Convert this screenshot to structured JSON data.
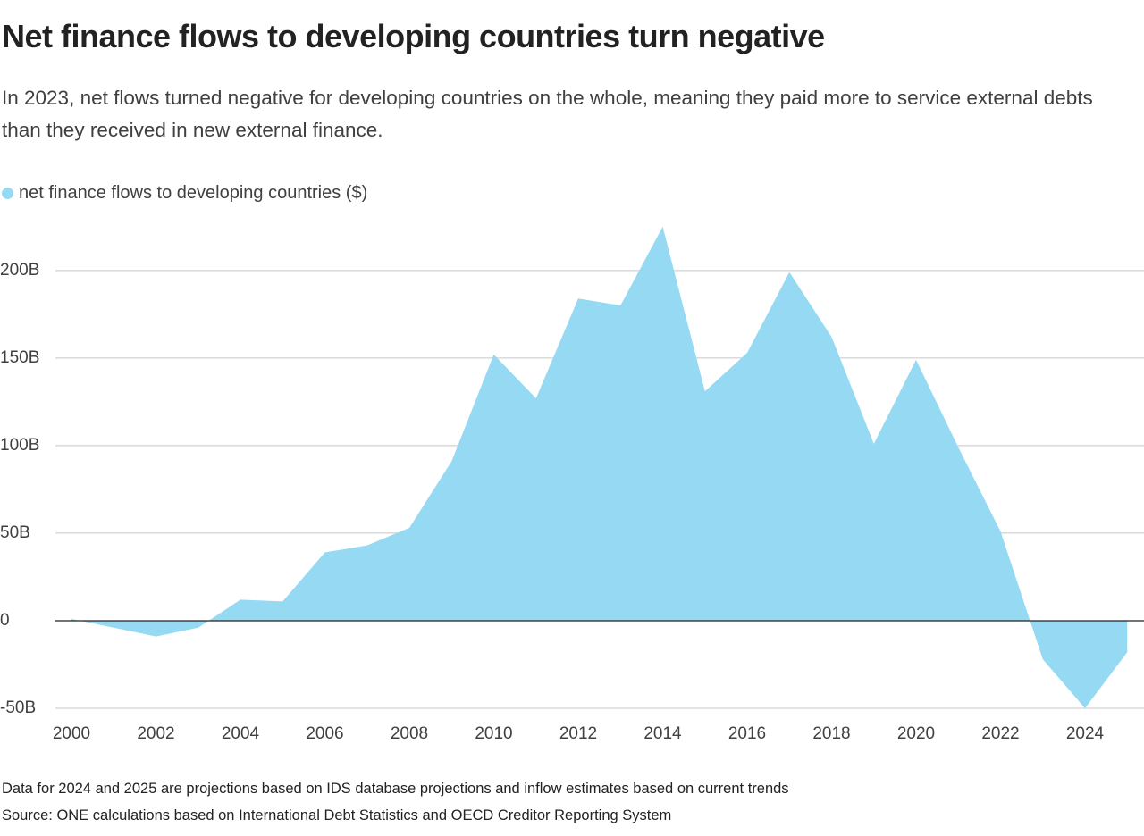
{
  "chart_data": {
    "type": "area",
    "title": "Net finance flows to developing countries turn negative",
    "subtitle": "In 2023, net flows turned negative for developing countries on the whole, meaning they paid more to service external debts than they received in new external finance.",
    "notes": [
      "Data for 2024 and 2025 are projections based on IDS database projections and inflow estimates based on current trends",
      "Source: ONE calculations based on International Debt Statistics and OECD Creditor Reporting System"
    ],
    "x": [
      2000,
      2001,
      2002,
      2003,
      2004,
      2005,
      2006,
      2007,
      2008,
      2009,
      2010,
      2011,
      2012,
      2013,
      2014,
      2015,
      2016,
      2017,
      2018,
      2019,
      2020,
      2021,
      2022,
      2023,
      2024,
      2025
    ],
    "series": [
      {
        "name": "net finance flows to developing countries ($)",
        "color": "#95d9f3",
        "values": [
          1,
          -4,
          -9,
          -4,
          12,
          11,
          39,
          43,
          53,
          91,
          152,
          127,
          184,
          180,
          225,
          131,
          153,
          199,
          162,
          101,
          149,
          99,
          51,
          -22,
          -50,
          -18
        ]
      }
    ],
    "xlim": [
      2000,
      2025
    ],
    "xticks": [
      2000,
      2002,
      2004,
      2006,
      2008,
      2010,
      2012,
      2014,
      2016,
      2018,
      2020,
      2022,
      2024
    ],
    "ylim": [
      -50,
      230
    ],
    "yticks": [
      {
        "value": -50,
        "label": "-50B"
      },
      0,
      {
        "value": 50,
        "label": "50B"
      },
      {
        "value": 100,
        "label": "100B"
      },
      {
        "value": 150,
        "label": "150B"
      },
      {
        "value": 200,
        "label": "200B"
      }
    ],
    "grid": true
  }
}
